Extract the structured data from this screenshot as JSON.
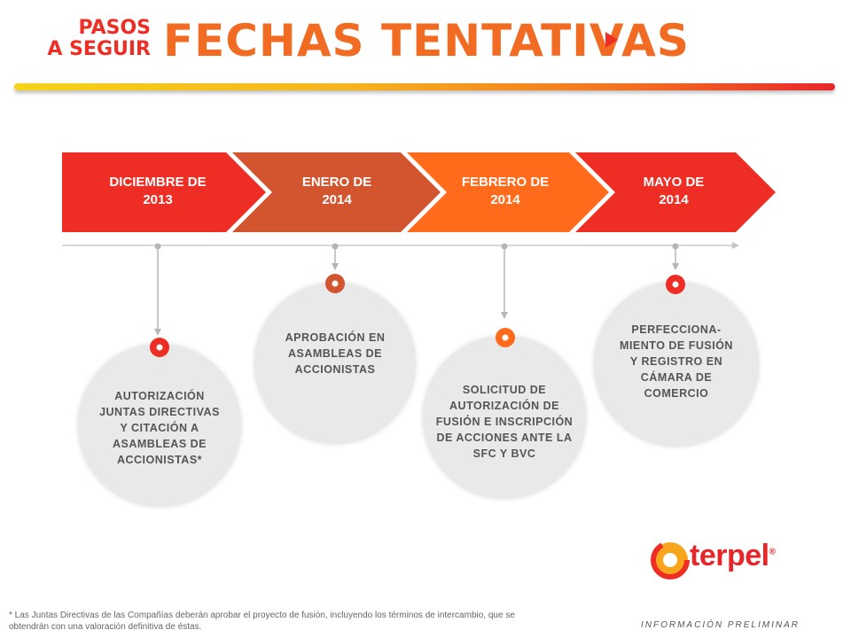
{
  "header": {
    "small_line1": "PASOS",
    "small_line2": "A SEGUIR",
    "title": "FECHAS TENTATIVAS"
  },
  "colors": {
    "red": "#ee2d24",
    "rust": "#d3552f",
    "orange": "#ff6b1a",
    "title_orange": "#f26b22",
    "circle_bg": "#e9e9e9"
  },
  "timeline": {
    "segments": [
      {
        "label_line1": "DICIEMBRE DE",
        "label_line2": "2013"
      },
      {
        "label_line1": "ENERO DE",
        "label_line2": "2014"
      },
      {
        "label_line1": "FEBRERO DE",
        "label_line2": "2014"
      },
      {
        "label_line1": "MAYO DE",
        "label_line2": "2014"
      }
    ]
  },
  "steps": [
    {
      "text": "AUTORIZACIÓN JUNTAS DIRECTIVAS Y CITACIÓN A ASAMBLEAS DE ACCIONISTAS*"
    },
    {
      "text": "APROBACIÓN EN ASAMBLEAS DE ACCIONISTAS"
    },
    {
      "text": "SOLICITUD DE AUTORIZACIÓN DE FUSIÓN E INSCRIPCIÓN DE ACCIONES ANTE LA SFC Y BVC"
    },
    {
      "text": "PERFECCIONA-MIENTO DE FUSIÓN Y REGISTRO EN CÁMARA DE COMERCIO"
    }
  ],
  "logo": {
    "name": "terpel",
    "registered": "®"
  },
  "footer": {
    "footnote": "* Las Juntas Directivas de las Compañías deberán aprobar el proyecto de fusión, incluyendo los términos de intercambio, que se obtendrán con una valoración definitiva de éstas.",
    "preliminary": "INFORMACIÓN PRELIMINAR"
  }
}
